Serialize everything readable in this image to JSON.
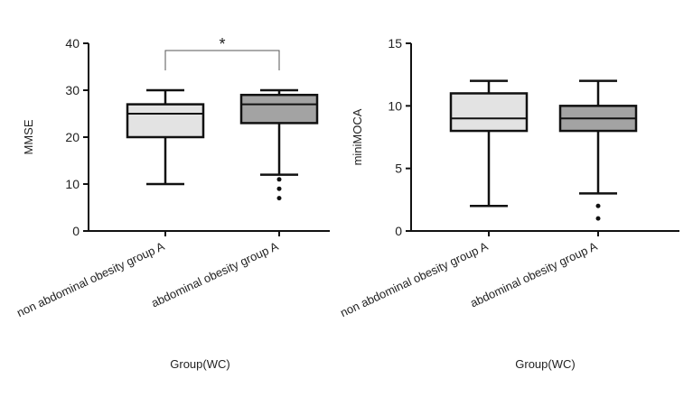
{
  "chart_data": [
    {
      "type": "box",
      "ylabel": "MMSE",
      "xlabel": "Group(WC)",
      "annotation": "*",
      "categories": [
        "non abdominal obesity group A",
        "abdominal obesity group A"
      ],
      "boxes": [
        {
          "color": "#e3e3e3",
          "min": 10,
          "q1": 20,
          "median": 25,
          "q3": 27,
          "max": 30,
          "outliers": []
        },
        {
          "color": "#a3a3a3",
          "min": 12,
          "q1": 23,
          "median": 27,
          "q3": 29,
          "max": 30,
          "outliers": [
            11,
            9,
            7
          ]
        }
      ],
      "ylim": [
        0,
        40
      ],
      "yticks": [
        0,
        10,
        20,
        30,
        40
      ]
    },
    {
      "type": "box",
      "ylabel": "miniMOCA",
      "xlabel": "Group(WC)",
      "categories": [
        "non abdominal obesity group A",
        "abdominal obesity group A"
      ],
      "boxes": [
        {
          "color": "#e3e3e3",
          "min": 2,
          "q1": 8,
          "median": 9,
          "q3": 11,
          "max": 12,
          "outliers": []
        },
        {
          "color": "#a3a3a3",
          "min": 3,
          "q1": 8,
          "median": 9,
          "q3": 10,
          "max": 12,
          "outliers": [
            2,
            1
          ]
        }
      ],
      "ylim": [
        0,
        15
      ],
      "yticks": [
        0,
        5,
        10,
        15
      ]
    }
  ]
}
